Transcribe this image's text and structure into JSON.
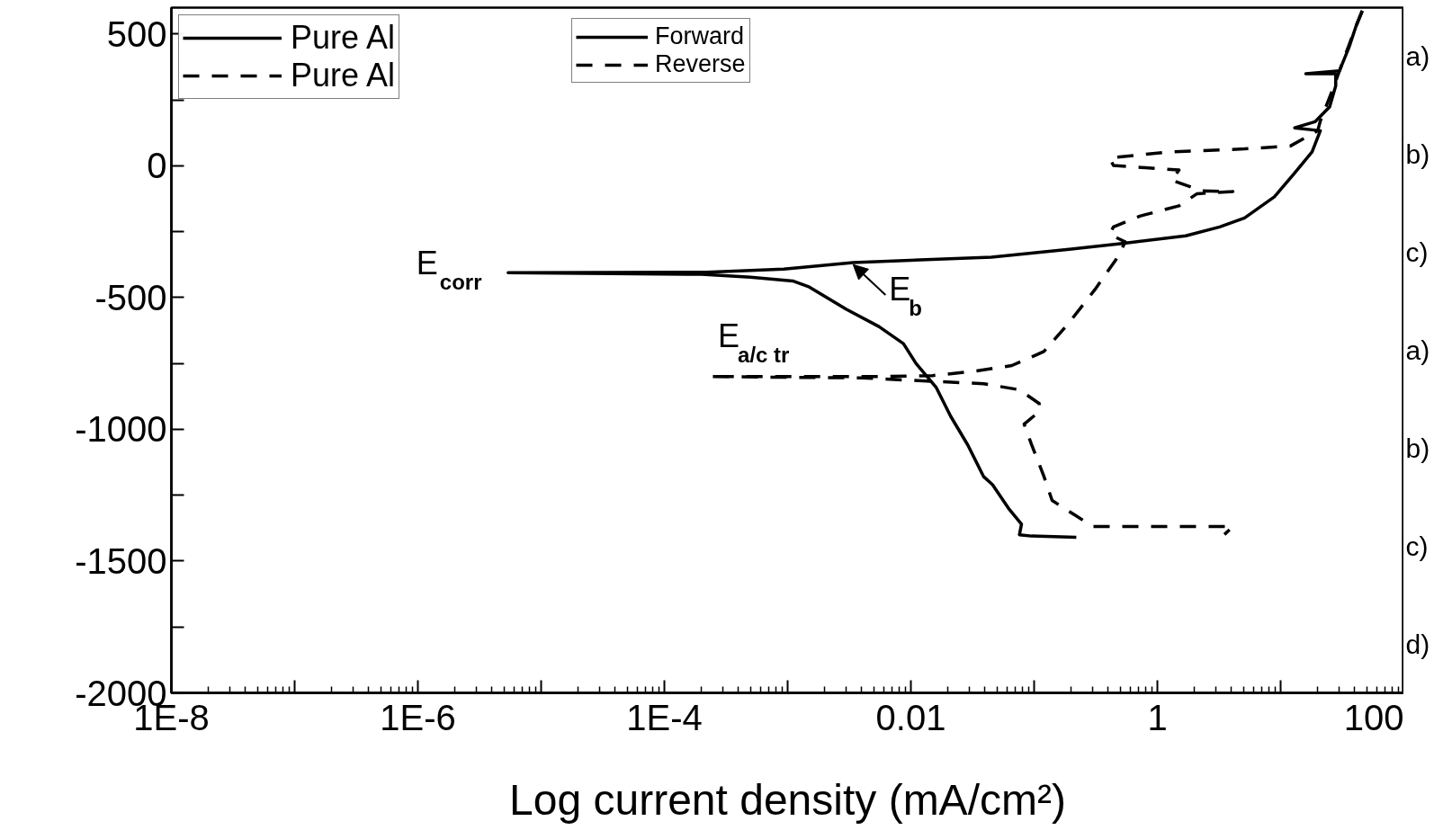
{
  "chart_data": {
    "type": "line",
    "xlabel": "Log current density (mA/cm²)",
    "log": "x",
    "xlim": [
      1e-08,
      100
    ],
    "xticks": [
      {
        "value": 1e-08,
        "label": "1E-8"
      },
      {
        "value": 1e-07,
        "label": null
      },
      {
        "value": 1e-06,
        "label": "1E-6"
      },
      {
        "value": 1e-05,
        "label": null
      },
      {
        "value": 0.0001,
        "label": "1E-4"
      },
      {
        "value": 0.001,
        "label": null
      },
      {
        "value": 0.01,
        "label": "0.01"
      },
      {
        "value": 0.1,
        "label": null
      },
      1,
      {
        "value": 10,
        "label": null
      },
      100
    ],
    "ylim": [
      -2000,
      600
    ],
    "yticks": [
      -2000,
      {
        "value": -1750,
        "label": null
      },
      -1500,
      {
        "value": -1250,
        "label": null
      },
      -1000,
      {
        "value": -750,
        "label": null
      },
      -500,
      {
        "value": -250,
        "label": null
      },
      0,
      {
        "value": 250,
        "label": null
      },
      500
    ],
    "grid": false,
    "legend": "top left",
    "series": [
      {
        "name": "Pure Al",
        "color": "#000000",
        "line_style": "solid",
        "x": [
          0.22,
          0.095,
          0.076,
          0.079,
          0.062,
          0.046,
          0.039,
          0.029,
          0.021,
          0.016,
          0.011,
          0.0087,
          0.0055,
          0.003,
          0.0015,
          0.0011,
          0.0005,
          0.0002,
          5.4e-06,
          0.00022,
          0.00093,
          0.0034,
          0.045,
          0.2,
          0.54,
          1.7,
          3.2,
          5.1,
          8.9,
          13,
          18,
          21,
          13,
          19,
          25,
          28,
          28,
          16,
          30,
          36,
          41,
          46
        ],
        "values": [
          -1410,
          -1405,
          -1400,
          -1360,
          -1300,
          -1210,
          -1180,
          -1060,
          -950,
          -840,
          -750,
          -675,
          -610,
          -545,
          -460,
          -437,
          -423,
          -412,
          -406,
          -404,
          -392,
          -367,
          -347,
          -316,
          -294,
          -266,
          -232,
          -198,
          -118,
          -27,
          53,
          133,
          144,
          167,
          224,
          303,
          349,
          349,
          360,
          451,
          531,
          588
        ]
      },
      {
        "name": "Pure Al",
        "color": "#000000",
        "line_style": "dashed",
        "x": [
          46,
          41,
          30,
          27,
          21,
          20,
          12,
          5.1,
          1.3,
          0.41,
          0.44,
          0.95,
          1.5,
          1.3,
          2.3,
          4.1,
          2.1,
          1.5,
          0.72,
          0.44,
          0.41,
          0.55,
          0.46,
          0.31,
          0.19,
          0.12,
          0.066,
          0.031,
          0.015,
          0.0048,
          0.0011,
          0.00023,
          0.004,
          0.039,
          0.076,
          0.11,
          0.11,
          0.083,
          0.095,
          0.12,
          0.14,
          0.22,
          0.3,
          4.1,
          3.5
        ],
        "values": [
          588,
          531,
          360,
          300,
          170,
          133,
          75,
          64,
          53,
          30,
          1,
          -10,
          -16,
          -54,
          -95,
          -98,
          -106,
          -152,
          -191,
          -232,
          -260,
          -289,
          -357,
          -471,
          -598,
          -705,
          -758,
          -781,
          -796,
          -800,
          -800,
          -800,
          -805,
          -827,
          -850,
          -902,
          -933,
          -980,
          -1056,
          -1178,
          -1270,
          -1329,
          -1369,
          -1369,
          -1399
        ]
      }
    ],
    "annotations": [
      {
        "text": "E$_{corr}$",
        "x": 5.4e-06,
        "y": -406
      },
      {
        "text": "E$_{b}$",
        "x": 0.0034,
        "y": -367
      },
      {
        "text": "E$_{a/c tr}$",
        "x": 0.00023,
        "y": -800
      },
      "Forward",
      "Reverse",
      "a)",
      "b)",
      "c)",
      "a)",
      "b)",
      "c)",
      "d)"
    ]
  }
}
